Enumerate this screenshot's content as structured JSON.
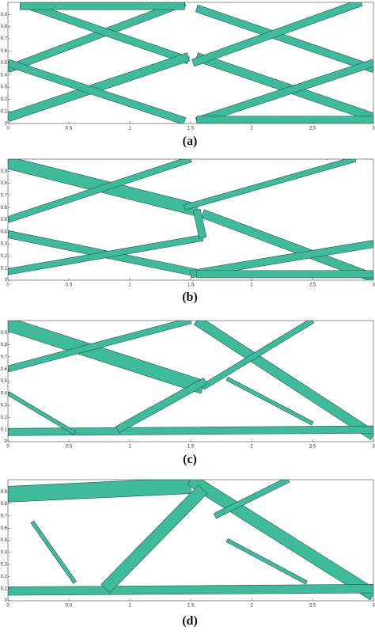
{
  "panels": [
    {
      "label": "(a)",
      "x_ticks": [
        "0",
        "0.5",
        "1",
        "1.5",
        "2",
        "2.5",
        "3"
      ],
      "y_ticks": [
        "0",
        "0.1",
        "0.2",
        "0.3",
        "0.4",
        "0.5",
        "0.6",
        "0.7",
        "0.8",
        "0.9"
      ]
    },
    {
      "label": "(b)",
      "x_ticks": [
        "0",
        "0.5",
        "1",
        "1.5",
        "2",
        "2.5",
        "3"
      ],
      "y_ticks": [
        "0",
        "0.1",
        "0.2",
        "0.3",
        "0.4",
        "0.5",
        "0.6",
        "0.7",
        "0.8",
        "0.9"
      ]
    },
    {
      "label": "(c)",
      "x_ticks": [
        "0",
        "0.5",
        "1",
        "1.5",
        "2",
        "2.5",
        "3"
      ],
      "y_ticks": [
        "0",
        "0.1",
        "0.2",
        "0.3",
        "0.4",
        "0.5",
        "0.6",
        "0.7",
        "0.8",
        "0.9"
      ]
    },
    {
      "label": "(d)",
      "x_ticks": [
        "0",
        "0.5",
        "1",
        "1.5",
        "2",
        "2.5",
        "3"
      ],
      "y_ticks": [
        "0",
        "0.1",
        "0.2",
        "0.3",
        "0.4",
        "0.5",
        "0.6",
        "0.7",
        "0.8",
        "0.9"
      ]
    }
  ]
}
